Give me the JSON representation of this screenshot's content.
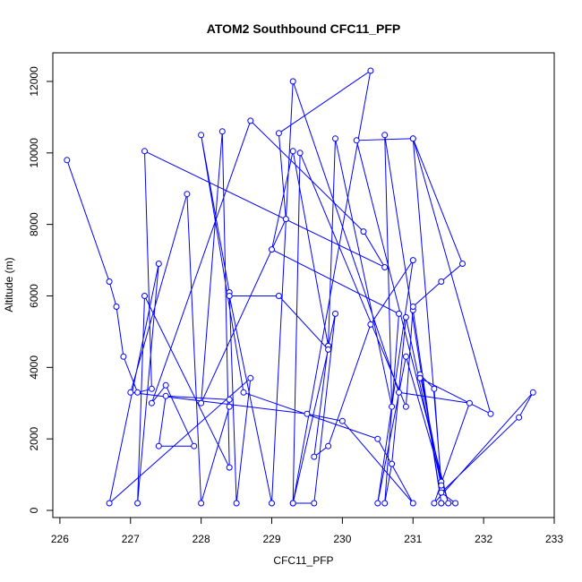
{
  "chart_data": {
    "type": "scatter",
    "title": "ATOM2 Southbound CFC11_PFP",
    "xlabel": "CFC11_PFP",
    "ylabel": "Altitude (m)",
    "xlim": [
      225.9,
      233.0
    ],
    "ylim": [
      -200,
      12800
    ],
    "x_ticks": [
      226,
      227,
      228,
      229,
      230,
      231,
      232,
      233
    ],
    "y_ticks": [
      0,
      2000,
      4000,
      6000,
      8000,
      10000,
      12000
    ],
    "grid": false,
    "legend": "none",
    "mode": "lines+markers",
    "color": "#0000ff",
    "series": [
      {
        "points": [
          [
            226.1,
            9800
          ],
          [
            226.7,
            6400
          ],
          [
            226.8,
            5700
          ],
          [
            226.9,
            4300
          ],
          [
            227.1,
            3300
          ],
          [
            227.3,
            3400
          ],
          [
            227.2,
            10050
          ],
          [
            230.6,
            6800
          ],
          [
            230.3,
            7800
          ],
          [
            228.7,
            10900
          ],
          [
            227.3,
            3000
          ],
          [
            227.5,
            3500
          ],
          [
            227.9,
            1800
          ],
          [
            227.4,
            1800
          ],
          [
            227.5,
            3200
          ],
          [
            228.4,
            3100
          ],
          [
            228.4,
            2900
          ],
          [
            228.0,
            200
          ],
          [
            227.8,
            8850
          ],
          [
            227.0,
            3300
          ],
          [
            229.5,
            2700
          ],
          [
            230.0,
            2500
          ],
          [
            231.0,
            200
          ],
          [
            230.5,
            2000
          ],
          [
            228.6,
            3300
          ],
          [
            228.0,
            10500
          ],
          [
            228.4,
            6100
          ],
          [
            228.5,
            200
          ],
          [
            228.7,
            3700
          ],
          [
            226.7,
            200
          ],
          [
            227.4,
            6900
          ],
          [
            227.1,
            200
          ],
          [
            227.2,
            6000
          ],
          [
            228.4,
            1200
          ],
          [
            228.3,
            10600
          ],
          [
            228.0,
            3000
          ],
          [
            229.2,
            8150
          ],
          [
            229.1,
            10550
          ],
          [
            230.4,
            12300
          ],
          [
            229.3,
            200
          ],
          [
            229.6,
            200
          ],
          [
            229.9,
            5500
          ],
          [
            229.8,
            4600
          ],
          [
            229.6,
            1500
          ],
          [
            229.8,
            1800
          ],
          [
            230.4,
            5200
          ],
          [
            231.0,
            7000
          ],
          [
            230.5,
            200
          ],
          [
            230.9,
            4300
          ],
          [
            231.5,
            200
          ],
          [
            230.2,
            10350
          ],
          [
            231.0,
            10400
          ],
          [
            231.4,
            800
          ],
          [
            231.1,
            3800
          ],
          [
            231.3,
            3400
          ],
          [
            231.4,
            700
          ],
          [
            230.9,
            5400
          ],
          [
            230.7,
            1300
          ],
          [
            230.6,
            200
          ],
          [
            230.8,
            5500
          ],
          [
            229.0,
            7300
          ],
          [
            229.3,
            10050
          ],
          [
            229.8,
            4600
          ],
          [
            229.9,
            10400
          ],
          [
            230.7,
            2900
          ],
          [
            230.6,
            10500
          ],
          [
            231.4,
            200
          ],
          [
            231.0,
            5600
          ],
          [
            231.4,
            200
          ],
          [
            231.6,
            200
          ],
          [
            231.4,
            500
          ],
          [
            232.5,
            2600
          ],
          [
            232.7,
            3300
          ],
          [
            231.3,
            200
          ],
          [
            231.8,
            3000
          ],
          [
            230.8,
            3300
          ],
          [
            229.3,
            12000
          ],
          [
            229.0,
            200
          ],
          [
            228.4,
            6000
          ],
          [
            229.1,
            6000
          ],
          [
            229.8,
            4500
          ],
          [
            229.3,
            200
          ],
          [
            229.4,
            10000
          ],
          [
            230.9,
            2900
          ],
          [
            231.0,
            5700
          ],
          [
            231.4,
            6400
          ],
          [
            231.7,
            6900
          ],
          [
            231.0,
            10400
          ],
          [
            232.1,
            2700
          ],
          [
            231.1,
            3700
          ]
        ]
      }
    ]
  }
}
